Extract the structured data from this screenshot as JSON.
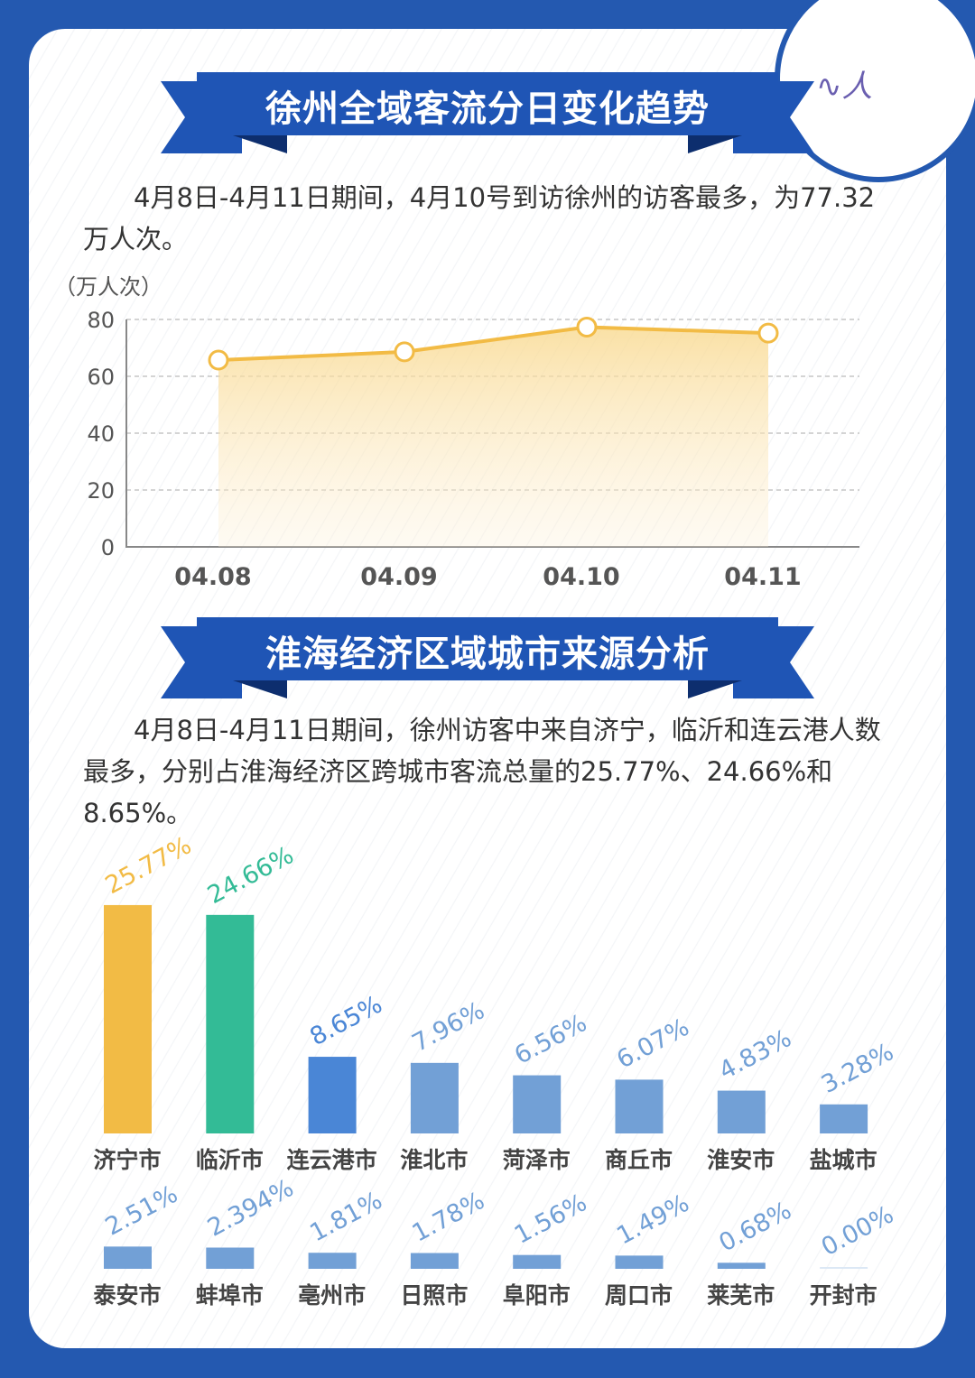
{
  "section1": {
    "title": "徐州全域客流分日变化趋势",
    "text": "4月8日-4月11日期间，4月10号到访徐州的访客最多，为77.32万人次。"
  },
  "section2": {
    "title": "淮海经济区域城市来源分析",
    "text": "4月8日-4月11日期间，徐州访客中来自济宁，临沂和连云港人数最多，分别占淮海经济区跨城市客流总量的25.77%、24.66%和8.65%。"
  },
  "chart_data": [
    {
      "type": "area",
      "ylabel": "（万人次）",
      "categories": [
        "04.08",
        "04.09",
        "04.10",
        "04.11"
      ],
      "values": [
        65.7,
        68.6,
        77.32,
        75.2
      ],
      "ylim": [
        0,
        80
      ],
      "yticks": [
        0,
        20,
        40,
        60,
        80
      ],
      "grid": true,
      "color": "#f2bb45"
    },
    {
      "type": "bar",
      "categories": [
        "济宁市",
        "临沂市",
        "连云港市",
        "淮北市",
        "菏泽市",
        "商丘市",
        "淮安市",
        "盐城市",
        "泰安市",
        "蚌埠市",
        "亳州市",
        "日照市",
        "阜阳市",
        "周口市",
        "莱芜市",
        "开封市"
      ],
      "values": [
        25.77,
        24.66,
        8.65,
        7.96,
        6.56,
        6.07,
        4.83,
        3.28,
        2.51,
        2.394,
        1.81,
        1.78,
        1.56,
        1.49,
        0.68,
        0.0
      ],
      "labels": [
        "25.77%",
        "24.66%",
        "8.65%",
        "7.96%",
        "6.56%",
        "6.07%",
        "4.83%",
        "3.28%",
        "2.51%",
        "2.394%",
        "1.81%",
        "1.78%",
        "1.56%",
        "1.49%",
        "0.68%",
        "0.00%"
      ],
      "colors": [
        "#f2bb45",
        "#33bb96",
        "#4a86d6",
        "#72a0d6"
      ]
    }
  ]
}
